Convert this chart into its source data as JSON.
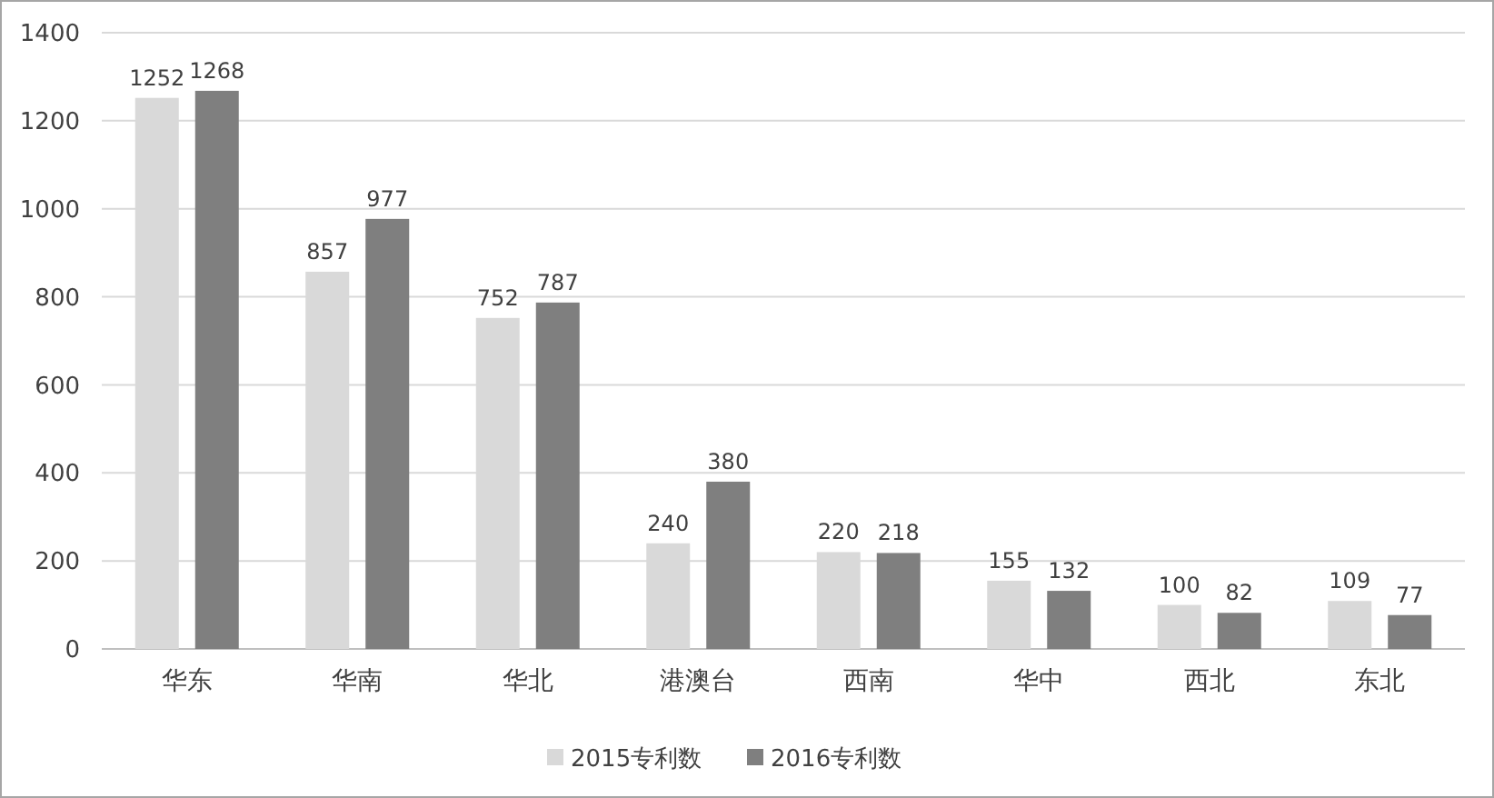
{
  "chart_data": {
    "type": "bar",
    "categories": [
      "华东",
      "华南",
      "华北",
      "港澳台",
      "西南",
      "华中",
      "西北",
      "东北"
    ],
    "series": [
      {
        "name": "2015专利数",
        "color": "#d9d9d9",
        "values": [
          1252,
          857,
          752,
          240,
          220,
          155,
          100,
          109
        ]
      },
      {
        "name": "2016专利数",
        "color": "#7f7f7f",
        "values": [
          1268,
          977,
          787,
          380,
          218,
          132,
          82,
          77
        ]
      }
    ],
    "ylim": [
      0,
      1400
    ],
    "yticks": [
      0,
      200,
      400,
      600,
      800,
      1000,
      1200,
      1400
    ],
    "grid": "y",
    "legend": "bottom",
    "data_labels": true
  }
}
